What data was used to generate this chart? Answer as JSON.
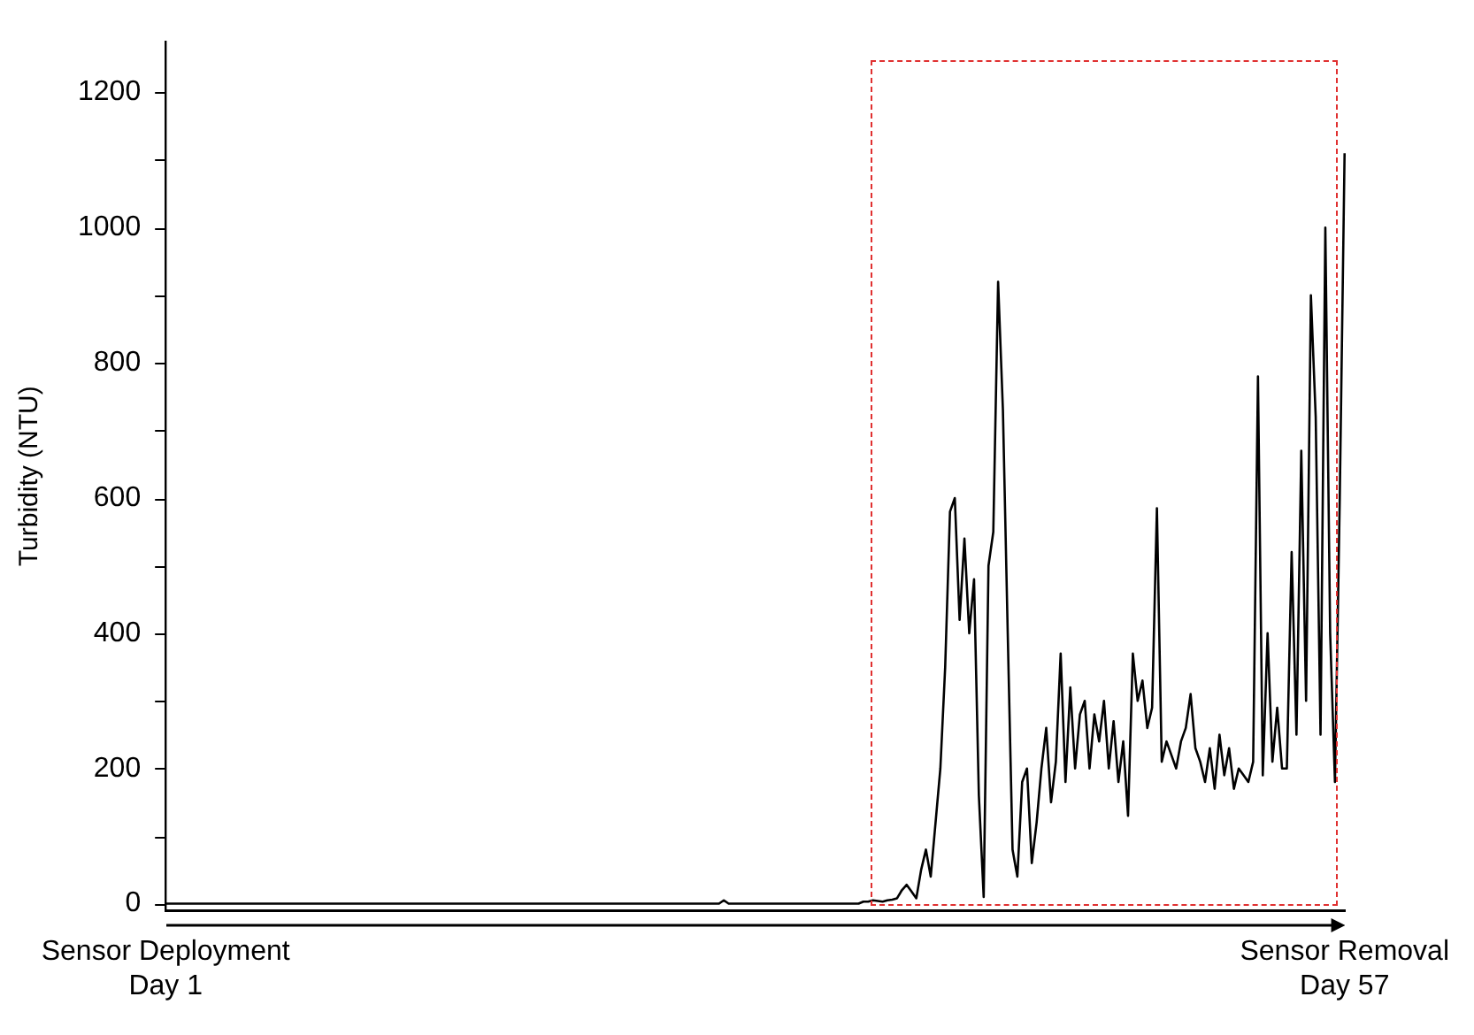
{
  "chart_data": {
    "type": "line",
    "ylabel": "Turbidity (NTU)",
    "marker": "none",
    "line_style": "solid",
    "grid": false,
    "legend": false,
    "categories": [
      "Sensor Deployment\nDay 1",
      null,
      null,
      null,
      null,
      null,
      null,
      null,
      null,
      null,
      null,
      null,
      null,
      null,
      null,
      null,
      null,
      null,
      null,
      null,
      null,
      null,
      null,
      null,
      null,
      null,
      null,
      null,
      null,
      null,
      null,
      null,
      null,
      null,
      null,
      null,
      null,
      null,
      null,
      null,
      null,
      null,
      null,
      null,
      null,
      null,
      null,
      null,
      null,
      null,
      null,
      null,
      null,
      null,
      null,
      null,
      null,
      null,
      null,
      null,
      null,
      null,
      null,
      null,
      null,
      null,
      null,
      null,
      null,
      null,
      null,
      null,
      null,
      null,
      null,
      null,
      null,
      null,
      null,
      null,
      null,
      null,
      null,
      null,
      null,
      null,
      null,
      null,
      null,
      null,
      null,
      null,
      null,
      null,
      null,
      null,
      null,
      null,
      null,
      null,
      null,
      null,
      null,
      null,
      null,
      null,
      null,
      null,
      null,
      null,
      null,
      null,
      null,
      null,
      null,
      null,
      null,
      null,
      null,
      null,
      null,
      null,
      null,
      null,
      null,
      null,
      null,
      null,
      null,
      null,
      null,
      null,
      null,
      null,
      null,
      null,
      null,
      null,
      null,
      null,
      null,
      null,
      null,
      null,
      null,
      null,
      null,
      null,
      null,
      null,
      null,
      null,
      null,
      null,
      null,
      null,
      null,
      null,
      null,
      null,
      null,
      null,
      null,
      null,
      null,
      null,
      null,
      null,
      null,
      null,
      null,
      null,
      null,
      null,
      null,
      null,
      null,
      null,
      null,
      null,
      null,
      null,
      null,
      null,
      null,
      null,
      null,
      null,
      null,
      null,
      null,
      null,
      null,
      null,
      null,
      null,
      null,
      null,
      null,
      null,
      null,
      null,
      null,
      null,
      null,
      null,
      null,
      null,
      null,
      null,
      null,
      null,
      null,
      null,
      null,
      null,
      null,
      null,
      null,
      null,
      null,
      null,
      null,
      null,
      null,
      null,
      null,
      null,
      null,
      null,
      null,
      null,
      null,
      null,
      null,
      null,
      null,
      null,
      null,
      null,
      null,
      null,
      null,
      null,
      null,
      "Sensor Removal\nDay 57"
    ],
    "ylim": [
      -10,
      1275
    ],
    "yticks": [
      0,
      {
        "value": 100,
        "label": null
      },
      200,
      {
        "value": 300,
        "label": null
      },
      400,
      {
        "value": 500,
        "label": null
      },
      600,
      {
        "value": 700,
        "label": null
      },
      800,
      {
        "value": 900,
        "label": null
      },
      1000,
      {
        "value": 1100,
        "label": null
      },
      1200
    ],
    "series": [
      {
        "color": "#000000",
        "values": [
          0,
          0,
          0,
          0,
          0,
          0,
          0,
          0,
          0,
          0,
          0,
          0,
          0,
          0,
          0,
          0,
          0,
          0,
          0,
          0,
          0,
          0,
          0,
          0,
          0,
          0,
          0,
          0,
          0,
          0,
          0,
          0,
          0,
          0,
          0,
          0,
          0,
          0,
          0,
          0,
          0,
          0,
          0,
          0,
          0,
          0,
          0,
          0,
          0,
          0,
          0,
          0,
          0,
          0,
          0,
          0,
          0,
          0,
          0,
          0,
          0,
          0,
          0,
          0,
          0,
          0,
          0,
          0,
          0,
          0,
          0,
          0,
          0,
          0,
          0,
          0,
          0,
          0,
          0,
          0,
          0,
          0,
          0,
          0,
          0,
          0,
          0,
          0,
          0,
          0,
          0,
          0,
          0,
          0,
          0,
          0,
          0,
          0,
          0,
          0,
          0,
          0,
          0,
          0,
          0,
          0,
          0,
          0,
          0,
          0,
          0,
          0,
          0,
          0,
          0,
          0,
          5,
          0,
          0,
          0,
          0,
          0,
          0,
          0,
          0,
          0,
          0,
          0,
          0,
          0,
          0,
          0,
          0,
          0,
          0,
          0,
          0,
          0,
          0,
          0,
          0,
          0,
          0,
          0,
          0,
          3,
          3,
          5,
          4,
          3,
          5,
          6,
          8,
          20,
          28,
          18,
          8,
          50,
          80,
          40,
          120,
          200,
          350,
          580,
          600,
          420,
          540,
          400,
          480,
          160,
          10,
          500,
          550,
          920,
          730,
          400,
          80,
          40,
          180,
          200,
          60,
          120,
          200,
          260,
          150,
          210,
          370,
          180,
          320,
          200,
          280,
          300,
          200,
          280,
          240,
          300,
          200,
          270,
          180,
          240,
          130,
          370,
          300,
          330,
          260,
          290,
          585,
          210,
          240,
          220,
          200,
          240,
          260,
          310,
          230,
          210,
          180,
          230,
          170,
          250,
          190,
          230,
          170,
          200,
          190,
          180,
          210,
          780,
          190,
          400,
          210,
          290,
          200,
          200,
          520,
          250,
          670,
          300,
          900,
          720,
          250,
          1000,
          400,
          180,
          600,
          1110
        ]
      }
    ]
  }
}
